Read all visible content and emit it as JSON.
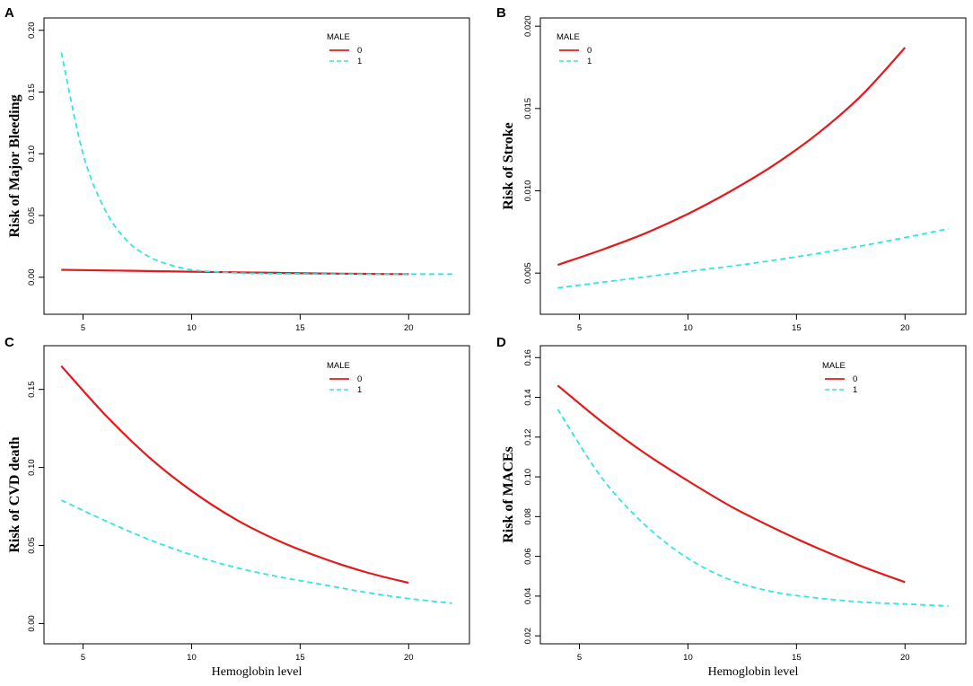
{
  "colors": {
    "male0": "#e31a1c",
    "male1": "#2ee6e6"
  },
  "chart_data": [
    {
      "panel": "A",
      "type": "line",
      "title": "",
      "xlabel": "",
      "ylabel": "Risk of Major Bleeding",
      "xlim": [
        3.2,
        22.8
      ],
      "ylim": [
        -0.03,
        0.21
      ],
      "xticks": [
        5,
        10,
        15,
        20
      ],
      "yticks": [
        0.0,
        0.05,
        0.1,
        0.15,
        0.2
      ],
      "ytick_labels": [
        "0.00",
        "0.05",
        "0.10",
        "0.15",
        "0.20"
      ],
      "legend": {
        "title": "MALE",
        "position": "top-right"
      },
      "series": [
        {
          "name": "0",
          "style": "solid",
          "x": [
            4,
            6,
            8,
            10,
            12,
            14,
            16,
            18,
            20
          ],
          "y": [
            0.006,
            0.0055,
            0.005,
            0.0045,
            0.004,
            0.0035,
            0.003,
            0.0027,
            0.0025
          ]
        },
        {
          "name": "1",
          "style": "dashed",
          "x": [
            4,
            5,
            6,
            7,
            8,
            9,
            10,
            11,
            12,
            13,
            14,
            16,
            18,
            20,
            22
          ],
          "y": [
            0.182,
            0.1,
            0.055,
            0.03,
            0.017,
            0.01,
            0.006,
            0.0045,
            0.0035,
            0.003,
            0.0028,
            0.0026,
            0.0025,
            0.0025,
            0.0025
          ]
        }
      ]
    },
    {
      "panel": "B",
      "type": "line",
      "title": "",
      "xlabel": "",
      "ylabel": "Risk of Stroke",
      "xlim": [
        3.2,
        22.8
      ],
      "ylim": [
        0.0025,
        0.0205
      ],
      "xticks": [
        5,
        10,
        15,
        20
      ],
      "yticks": [
        0.005,
        0.01,
        0.015,
        0.02
      ],
      "ytick_labels": [
        "0.005",
        "0.010",
        "0.015",
        "0.020"
      ],
      "legend": {
        "title": "MALE",
        "position": "top-left"
      },
      "series": [
        {
          "name": "0",
          "style": "solid",
          "x": [
            4,
            6,
            8,
            10,
            12,
            14,
            16,
            18,
            20
          ],
          "y": [
            0.0055,
            0.0064,
            0.0074,
            0.0086,
            0.01,
            0.0116,
            0.0135,
            0.0158,
            0.0187
          ]
        },
        {
          "name": "1",
          "style": "dashed",
          "x": [
            4,
            7,
            10,
            13,
            16,
            19,
            22
          ],
          "y": [
            0.0041,
            0.0046,
            0.0051,
            0.0056,
            0.0062,
            0.0069,
            0.0077
          ]
        }
      ]
    },
    {
      "panel": "C",
      "type": "line",
      "title": "",
      "xlabel": "Hemoglobin level",
      "ylabel": "Risk of CVD death",
      "xlim": [
        3.2,
        22.8
      ],
      "ylim": [
        -0.013,
        0.178
      ],
      "xticks": [
        5,
        10,
        15,
        20
      ],
      "yticks": [
        0.0,
        0.05,
        0.1,
        0.15
      ],
      "ytick_labels": [
        "0.00",
        "0.05",
        "0.10",
        "0.15"
      ],
      "legend": {
        "title": "MALE",
        "position": "top-right"
      },
      "series": [
        {
          "name": "0",
          "style": "solid",
          "x": [
            4,
            6,
            8,
            10,
            12,
            14,
            16,
            18,
            20
          ],
          "y": [
            0.165,
            0.134,
            0.107,
            0.085,
            0.067,
            0.053,
            0.042,
            0.033,
            0.026
          ]
        },
        {
          "name": "1",
          "style": "dashed",
          "x": [
            4,
            6,
            8,
            10,
            12,
            14,
            16,
            18,
            20,
            22
          ],
          "y": [
            0.079,
            0.066,
            0.054,
            0.044,
            0.036,
            0.03,
            0.025,
            0.02,
            0.016,
            0.013
          ]
        }
      ]
    },
    {
      "panel": "D",
      "type": "line",
      "title": "",
      "xlabel": "Hemoglobin level",
      "ylabel": "Risk of MACEs",
      "xlim": [
        3.2,
        22.8
      ],
      "ylim": [
        0.016,
        0.166
      ],
      "xticks": [
        5,
        10,
        15,
        20
      ],
      "yticks": [
        0.02,
        0.04,
        0.06,
        0.08,
        0.1,
        0.12,
        0.14,
        0.16
      ],
      "ytick_labels": [
        "0.02",
        "0.04",
        "0.06",
        "0.08",
        "0.10",
        "0.12",
        "0.14",
        "0.16"
      ],
      "legend": {
        "title": "MALE",
        "position": "top-right"
      },
      "series": [
        {
          "name": "0",
          "style": "solid",
          "x": [
            4,
            6,
            8,
            10,
            12,
            14,
            16,
            18,
            20
          ],
          "y": [
            0.146,
            0.128,
            0.112,
            0.098,
            0.085,
            0.074,
            0.064,
            0.055,
            0.047
          ]
        },
        {
          "name": "1",
          "style": "dashed",
          "x": [
            4,
            6,
            8,
            10,
            12,
            14,
            16,
            18,
            20,
            22
          ],
          "y": [
            0.134,
            0.1,
            0.076,
            0.059,
            0.048,
            0.042,
            0.039,
            0.037,
            0.036,
            0.035
          ]
        }
      ]
    }
  ]
}
